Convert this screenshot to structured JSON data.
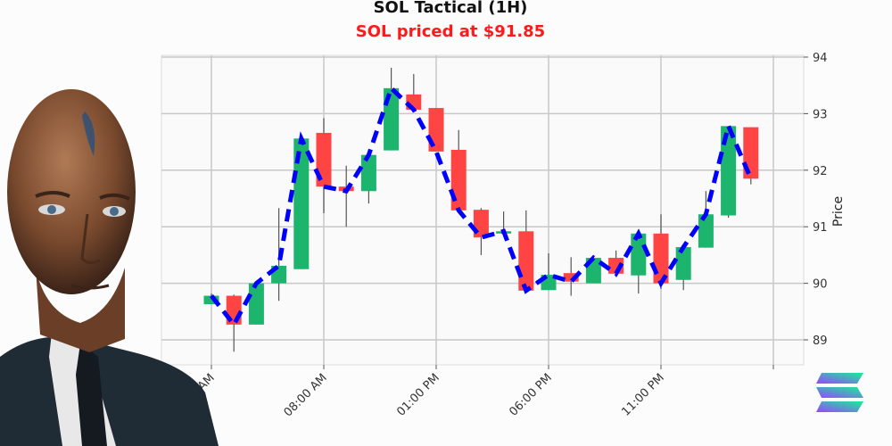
{
  "chart_data": {
    "type": "candlestick",
    "title": "SOL Tactical (1H)",
    "subtitle": "SOL priced at $91.85",
    "ylabel": "Price",
    "xlabel": "",
    "ylim": [
      88.7,
      94.05
    ],
    "yticks": [
      89,
      90,
      91,
      92,
      93,
      94
    ],
    "xtick_labels": [
      "03:00 AM",
      "08:00 AM",
      "01:00 PM",
      "06:00 PM",
      "11:00 PM",
      ""
    ],
    "xtick_positions": [
      0,
      5,
      10,
      15,
      20,
      25
    ],
    "grid": true,
    "y_axis_side": "right",
    "colors": {
      "up": "#1db46e",
      "down": "#ff4444",
      "line": "#0000ff",
      "wick": "#555555"
    },
    "candles": [
      {
        "o": 89.63,
        "h": 89.82,
        "l": 89.63,
        "c": 89.78
      },
      {
        "o": 89.78,
        "h": 89.8,
        "l": 88.79,
        "c": 89.27
      },
      {
        "o": 89.27,
        "h": 90.0,
        "l": 89.27,
        "c": 90.0
      },
      {
        "o": 90.0,
        "h": 91.33,
        "l": 89.69,
        "c": 90.31
      },
      {
        "o": 90.25,
        "h": 92.56,
        "l": 90.25,
        "c": 92.56
      },
      {
        "o": 92.66,
        "h": 92.92,
        "l": 91.24,
        "c": 91.71
      },
      {
        "o": 91.71,
        "h": 92.08,
        "l": 91.0,
        "c": 91.63
      },
      {
        "o": 91.63,
        "h": 92.27,
        "l": 91.41,
        "c": 92.27
      },
      {
        "o": 92.35,
        "h": 93.81,
        "l": 92.35,
        "c": 93.45
      },
      {
        "o": 93.34,
        "h": 93.7,
        "l": 93.07,
        "c": 93.07
      },
      {
        "o": 93.1,
        "h": 93.1,
        "l": 92.33,
        "c": 92.33
      },
      {
        "o": 92.36,
        "h": 92.71,
        "l": 91.29,
        "c": 91.29
      },
      {
        "o": 91.3,
        "h": 91.33,
        "l": 90.5,
        "c": 90.81
      },
      {
        "o": 90.88,
        "h": 91.27,
        "l": 90.88,
        "c": 90.92
      },
      {
        "o": 90.92,
        "h": 91.29,
        "l": 89.87,
        "c": 89.87
      },
      {
        "o": 89.88,
        "h": 90.53,
        "l": 89.88,
        "c": 90.15
      },
      {
        "o": 90.18,
        "h": 90.46,
        "l": 89.78,
        "c": 90.03
      },
      {
        "o": 90.0,
        "h": 90.49,
        "l": 90.0,
        "c": 90.45
      },
      {
        "o": 90.45,
        "h": 90.58,
        "l": 90.11,
        "c": 90.17
      },
      {
        "o": 90.14,
        "h": 90.88,
        "l": 89.82,
        "c": 90.88
      },
      {
        "o": 90.88,
        "h": 91.22,
        "l": 89.9,
        "c": 90.0
      },
      {
        "o": 90.06,
        "h": 90.64,
        "l": 89.88,
        "c": 90.64
      },
      {
        "o": 90.63,
        "h": 91.63,
        "l": 90.63,
        "c": 91.22
      },
      {
        "o": 91.2,
        "h": 92.78,
        "l": 91.16,
        "c": 92.78
      },
      {
        "o": 92.76,
        "h": 92.76,
        "l": 91.75,
        "c": 91.85
      }
    ]
  },
  "logo": "solana-logo"
}
